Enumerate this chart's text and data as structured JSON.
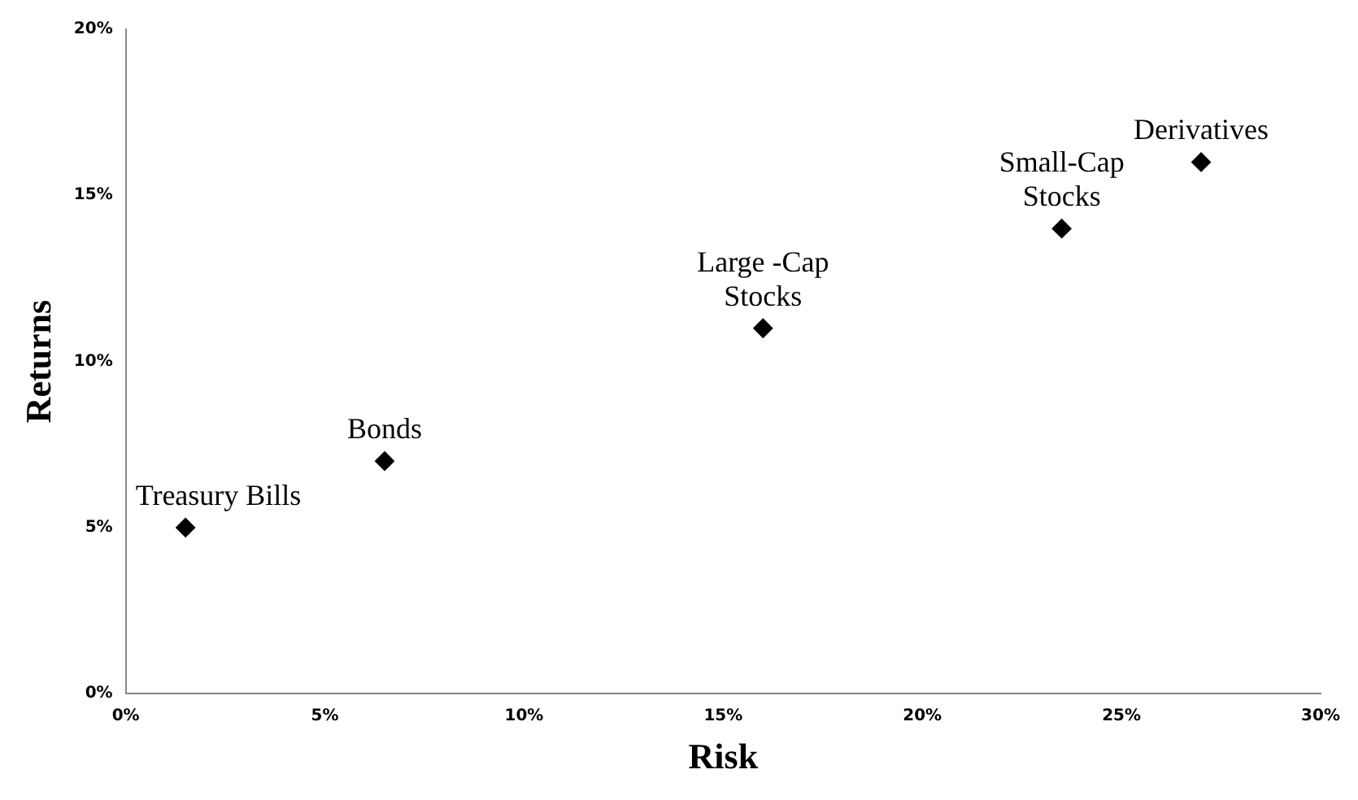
{
  "chart_data": {
    "type": "scatter",
    "xlabel": "Risk",
    "ylabel": "Returns",
    "x": [
      1.5,
      6.5,
      16,
      23.5,
      27
    ],
    "series": [
      {
        "color": "#000000",
        "values": [
          5,
          7,
          11,
          14,
          16
        ]
      }
    ],
    "xlim": [
      0,
      30
    ],
    "xticks": [
      {
        "value": 0,
        "label": "0%"
      },
      {
        "value": 5,
        "label": "5%"
      },
      {
        "value": 10,
        "label": "10%"
      },
      {
        "value": 15,
        "label": "15%"
      },
      {
        "value": 20,
        "label": "20%"
      },
      {
        "value": 25,
        "label": "25%"
      },
      {
        "value": 30,
        "label": "30%"
      }
    ],
    "ylim": [
      0,
      20
    ],
    "yticks": [
      {
        "value": 0,
        "label": "0%"
      },
      {
        "value": 5,
        "label": "5%"
      },
      {
        "value": 10,
        "label": "10%"
      },
      {
        "value": 15,
        "label": "15%"
      },
      {
        "value": 20,
        "label": "20%"
      }
    ],
    "grid": false,
    "legend": false,
    "marker": "diamond",
    "annotations": [
      {
        "text": "Treasury Bills",
        "x": 1.5,
        "y": 5
      },
      {
        "text": "Bonds",
        "x": 6.5,
        "y": 7
      },
      {
        "text": "Large -Cap\nStocks",
        "x": 16,
        "y": 11
      },
      {
        "text": "Small-Cap\nStocks",
        "x": 23.5,
        "y": 14
      },
      {
        "text": "Derivatives",
        "x": 27,
        "y": 16
      }
    ]
  }
}
